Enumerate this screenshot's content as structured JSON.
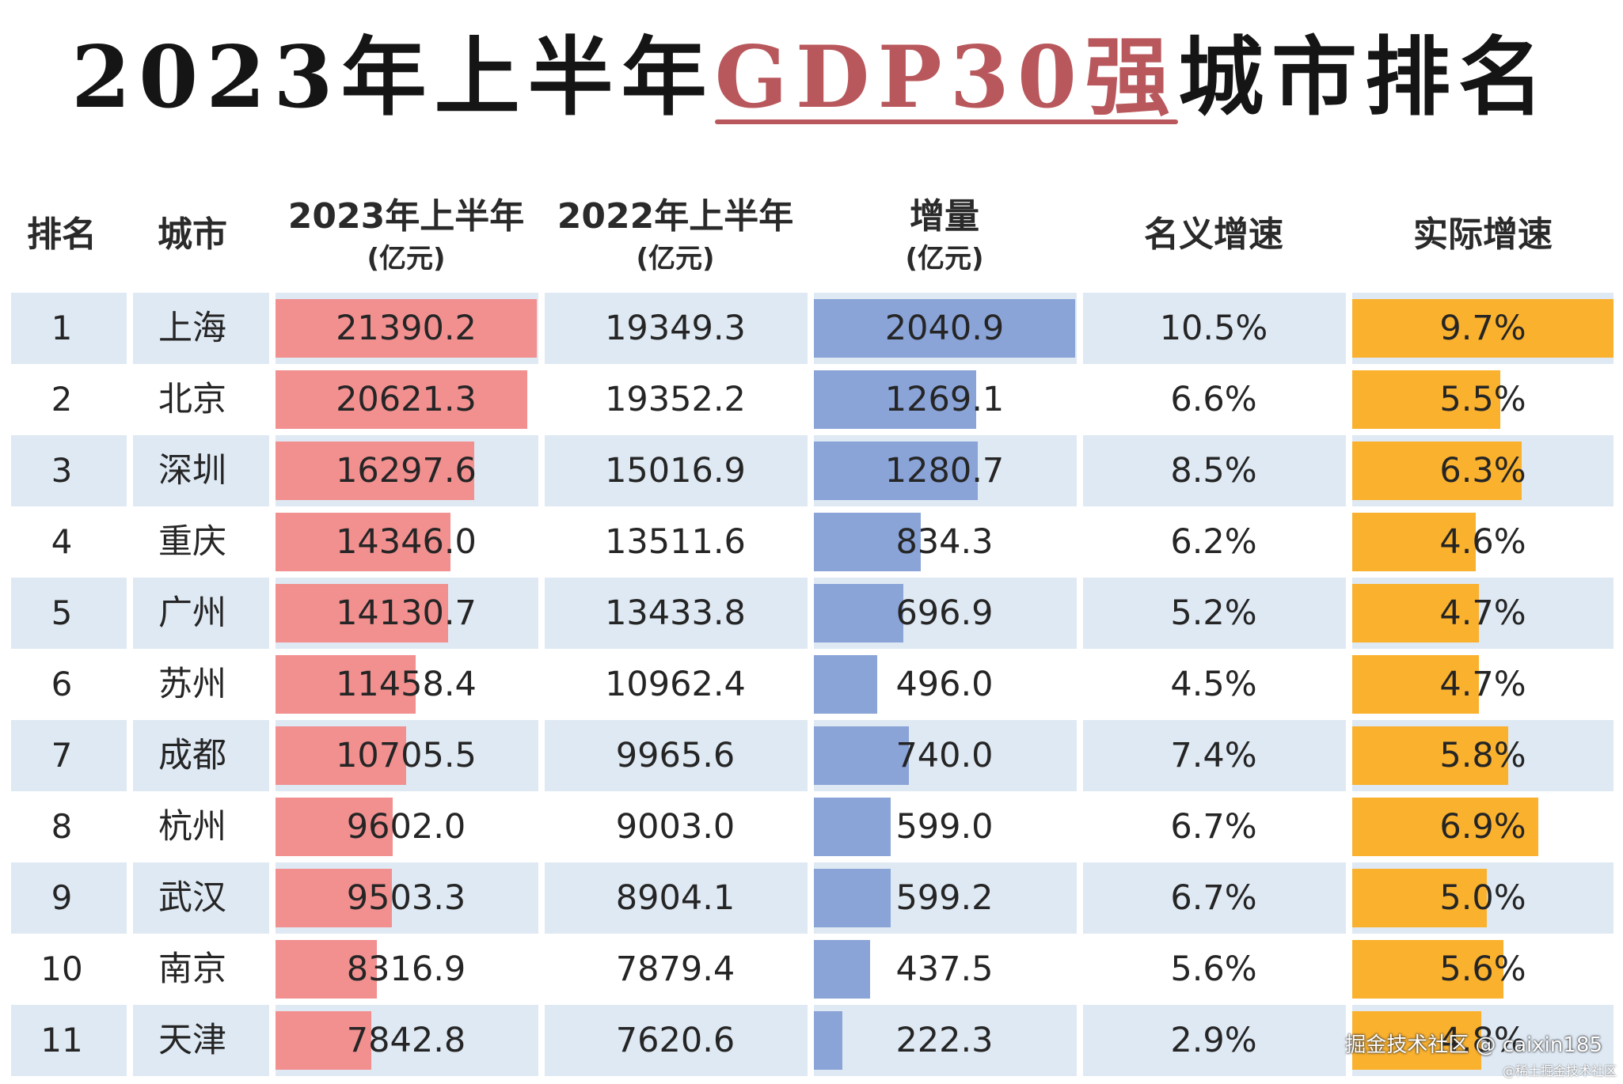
{
  "title": {
    "prefix": "2023年上半年",
    "highlight": "GDP30强",
    "suffix": "城市排名"
  },
  "headers": {
    "rank": "排名",
    "city": "城市",
    "gdp2023": "2023年上半年",
    "gdp2023_unit": "(亿元)",
    "gdp2022": "2022年上半年",
    "gdp2022_unit": "(亿元)",
    "increase": "增量",
    "increase_unit": "(亿元)",
    "nominal": "名义增速",
    "real": "实际增速"
  },
  "colors": {
    "gdp2023_bar": "#f29090",
    "increase_bar": "#8aa4d8",
    "real_bar": "#fab12e",
    "row_band": "#dfe9f3",
    "title_highlight": "#b9585c"
  },
  "watermark": {
    "main": "掘金技术社区 @ caixin185",
    "sub": "@稀土掘金技术社区"
  },
  "chart_data": {
    "type": "table",
    "columns": [
      "排名",
      "城市",
      "2023年上半年(亿元)",
      "2022年上半年(亿元)",
      "增量(亿元)",
      "名义增速",
      "实际增速"
    ],
    "rows": [
      {
        "rank": "1",
        "city": "上海",
        "gdp2023": "21390.2",
        "gdp2022": "19349.3",
        "increase": "2040.9",
        "nominal": "10.5%",
        "real": "9.7%"
      },
      {
        "rank": "2",
        "city": "北京",
        "gdp2023": "20621.3",
        "gdp2022": "19352.2",
        "increase": "1269.1",
        "nominal": "6.6%",
        "real": "5.5%"
      },
      {
        "rank": "3",
        "city": "深圳",
        "gdp2023": "16297.6",
        "gdp2022": "15016.9",
        "increase": "1280.7",
        "nominal": "8.5%",
        "real": "6.3%"
      },
      {
        "rank": "4",
        "city": "重庆",
        "gdp2023": "14346.0",
        "gdp2022": "13511.6",
        "increase": "834.3",
        "nominal": "6.2%",
        "real": "4.6%"
      },
      {
        "rank": "5",
        "city": "广州",
        "gdp2023": "14130.7",
        "gdp2022": "13433.8",
        "increase": "696.9",
        "nominal": "5.2%",
        "real": "4.7%"
      },
      {
        "rank": "6",
        "city": "苏州",
        "gdp2023": "11458.4",
        "gdp2022": "10962.4",
        "increase": "496.0",
        "nominal": "4.5%",
        "real": "4.7%"
      },
      {
        "rank": "7",
        "city": "成都",
        "gdp2023": "10705.5",
        "gdp2022": "9965.6",
        "increase": "740.0",
        "nominal": "7.4%",
        "real": "5.8%"
      },
      {
        "rank": "8",
        "city": "杭州",
        "gdp2023": "9602.0",
        "gdp2022": "9003.0",
        "increase": "599.0",
        "nominal": "6.7%",
        "real": "6.9%"
      },
      {
        "rank": "9",
        "city": "武汉",
        "gdp2023": "9503.3",
        "gdp2022": "8904.1",
        "increase": "599.2",
        "nominal": "6.7%",
        "real": "5.0%"
      },
      {
        "rank": "10",
        "city": "南京",
        "gdp2023": "8316.9",
        "gdp2022": "7879.4",
        "increase": "437.5",
        "nominal": "5.6%",
        "real": "5.6%"
      },
      {
        "rank": "11",
        "city": "天津",
        "gdp2023": "7842.8",
        "gdp2022": "7620.6",
        "increase": "222.3",
        "nominal": "2.9%",
        "real": "4.8%"
      }
    ]
  }
}
